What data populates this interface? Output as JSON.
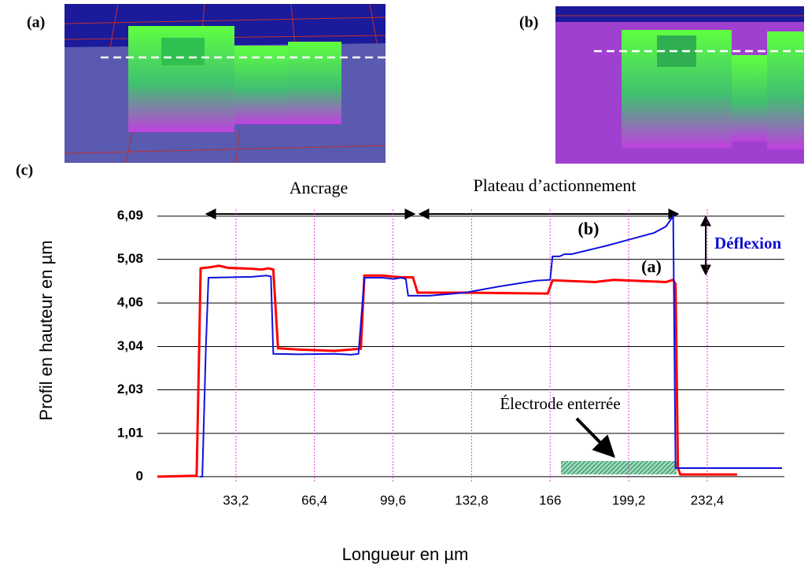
{
  "panel_labels": [
    "(a)",
    "(b)",
    "(c)"
  ],
  "chart_data": {
    "type": "line",
    "x_label": "Longueur en µm",
    "y_label": "Profil en hauteur en µm",
    "annotations": [
      "Ancrage",
      "Plateau d’actionnement",
      "Déflexion",
      "Électrode enterrée"
    ],
    "xlim": [
      0,
      265
    ],
    "ylim": [
      -0.15,
      6.25
    ],
    "xticks": [
      {
        "value": 33.2,
        "label": "33,2"
      },
      {
        "value": 66.4,
        "label": "66,4"
      },
      {
        "value": 99.6,
        "label": "99,6"
      },
      {
        "value": 132.8,
        "label": "132,8"
      },
      166,
      {
        "value": 199.2,
        "label": "199,2"
      },
      {
        "value": 232.4,
        "label": "232,4"
      }
    ],
    "yticks": [
      0,
      {
        "value": 1.01,
        "label": "1,01"
      },
      {
        "value": 2.03,
        "label": "2,03"
      },
      {
        "value": 3.04,
        "label": "3,04"
      },
      {
        "value": 4.06,
        "label": "4,06"
      },
      {
        "value": 5.08,
        "label": "5,08"
      },
      {
        "value": 6.09,
        "label": "6,09"
      }
    ],
    "grid": true,
    "series": [
      {
        "name": "(a)",
        "color": "#ff0000",
        "x": [
          0,
          16.6,
          17.6,
          18.3,
          23,
          26,
          30,
          40,
          44,
          47,
          49,
          51,
          60,
          75,
          86,
          87.5,
          95,
          103,
          108,
          110,
          130,
          165,
          167,
          185,
          193,
          215,
          218,
          219,
          220,
          221,
          245
        ],
        "values": [
          0,
          0.02,
          2.8,
          4.87,
          4.9,
          4.93,
          4.88,
          4.86,
          4.84,
          4.87,
          4.84,
          3.0,
          2.97,
          2.94,
          2.99,
          4.7,
          4.7,
          4.66,
          4.66,
          4.3,
          4.3,
          4.28,
          4.59,
          4.55,
          4.6,
          4.55,
          4.6,
          4.5,
          0.2,
          0.05,
          0.05
        ]
      },
      {
        "name": "(b)",
        "color": "#1010e0",
        "x": [
          18,
          19,
          20.5,
          21.6,
          30,
          40,
          46,
          48,
          49,
          60,
          75,
          82,
          85,
          87.5,
          95,
          100,
          103,
          105,
          106,
          115,
          130,
          145,
          160,
          166,
          167,
          170,
          172,
          175,
          190,
          200,
          210,
          215,
          218,
          219,
          225,
          264
        ],
        "values": [
          0,
          0,
          3.0,
          4.65,
          4.66,
          4.67,
          4.7,
          4.68,
          2.87,
          2.86,
          2.87,
          2.85,
          2.87,
          4.65,
          4.65,
          4.62,
          4.65,
          4.62,
          4.23,
          4.23,
          4.3,
          4.45,
          4.58,
          4.6,
          5.15,
          5.15,
          5.2,
          5.2,
          5.4,
          5.55,
          5.7,
          5.85,
          6.09,
          0.2,
          0.2,
          0.2
        ]
      }
    ]
  }
}
